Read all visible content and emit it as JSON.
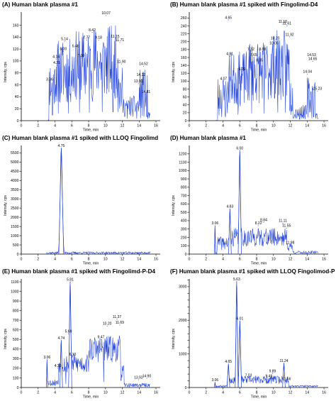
{
  "colors": {
    "trace": "#1f3fd6",
    "axis": "#000000",
    "text": "#000000"
  },
  "chart_data": [
    {
      "id": "A",
      "type": "line",
      "title": "(A) Human blank plasma #1",
      "xlabel": "Time, min",
      "ylabel": "Intensity, cps",
      "xlim": [
        0,
        16.5
      ],
      "ylim": [
        0,
        182
      ],
      "xticks": [
        0,
        2,
        4,
        6,
        8,
        10,
        12,
        14,
        16
      ],
      "yticks": [
        0,
        20,
        40,
        60,
        80,
        100,
        120,
        140,
        160
      ],
      "grid": false,
      "trace": {
        "x_start": 3.0,
        "x_end": 15.3,
        "step": 0.045,
        "seed": 11,
        "segments": [
          {
            "x": [
              3.0,
              3.3
            ],
            "base": 0,
            "amp": 2
          },
          {
            "x": [
              3.3,
              4.0
            ],
            "base": 62,
            "amp": 45
          },
          {
            "x": [
              4.0,
              6.2
            ],
            "base": 82,
            "amp": 55
          },
          {
            "x": [
              6.2,
              8.5
            ],
            "base": 92,
            "amp": 60
          },
          {
            "x": [
              8.5,
              11.6
            ],
            "base": 98,
            "amp": 62
          },
          {
            "x": [
              11.6,
              12.0
            ],
            "base": 50,
            "amp": 40
          },
          {
            "x": [
              12.0,
              14.0
            ],
            "base": 24,
            "amp": 18
          },
          {
            "x": [
              14.0,
              15.0
            ],
            "base": 44,
            "amp": 42
          },
          {
            "x": [
              15.0,
              15.3
            ],
            "base": 8,
            "amp": 6
          }
        ],
        "dropouts": [
          3.7,
          4.4,
          5.6,
          6.9,
          8.1,
          9.6,
          10.9,
          11.5,
          12.6,
          13.7,
          14.9
        ]
      },
      "peaks": [
        {
          "x": 3.36,
          "y": 65,
          "label": "3.36"
        },
        {
          "x": 4.21,
          "y": 93,
          "label": "4.21"
        },
        {
          "x": 4.14,
          "y": 103,
          "label": "4.14"
        },
        {
          "x": 5.0,
          "y": 116,
          "label": "5.00"
        },
        {
          "x": 5.14,
          "y": 133,
          "label": "5.14"
        },
        {
          "x": 7.1,
          "y": 105,
          "label": "7.10"
        },
        {
          "x": 6.46,
          "y": 121,
          "label": "6.46"
        },
        {
          "x": 7.77,
          "y": 135,
          "label": "7.77"
        },
        {
          "x": 9.18,
          "y": 135,
          "label": "9.18"
        },
        {
          "x": 8.42,
          "y": 148,
          "label": "8.42"
        },
        {
          "x": 10.07,
          "y": 176,
          "label": "10.07"
        },
        {
          "x": 11.15,
          "y": 137,
          "label": "11.15"
        },
        {
          "x": 11.71,
          "y": 131,
          "label": "11.71"
        },
        {
          "x": 11.9,
          "y": 95,
          "label": "11.90"
        },
        {
          "x": 14.52,
          "y": 91,
          "label": "14.52"
        },
        {
          "x": 14.22,
          "y": 73,
          "label": "14.22"
        },
        {
          "x": 13.91,
          "y": 62,
          "label": "13.91"
        },
        {
          "x": 14.81,
          "y": 44,
          "label": "14.81"
        }
      ]
    },
    {
      "id": "B",
      "type": "line",
      "title": "(B) Human blank plasma #1 spiked with Fingolimd-D4",
      "xlabel": "Time, min",
      "ylabel": "Intensity, cps",
      "xlim": [
        0,
        16.5
      ],
      "ylim": [
        0,
        275
      ],
      "xticks": [
        0,
        2,
        4,
        6,
        8,
        10,
        12,
        14,
        16
      ],
      "yticks": [
        0,
        20,
        40,
        60,
        80,
        100,
        120,
        140,
        160,
        180,
        200,
        220,
        240,
        260
      ],
      "grid": false,
      "trace": {
        "x_start": 3.0,
        "x_end": 15.3,
        "step": 0.045,
        "seed": 23,
        "segments": [
          {
            "x": [
              3.0,
              3.4
            ],
            "base": 0,
            "amp": 2
          },
          {
            "x": [
              3.4,
              4.6
            ],
            "base": 60,
            "amp": 55
          },
          {
            "x": [
              4.6,
              7.0
            ],
            "base": 105,
            "amp": 70
          },
          {
            "x": [
              7.0,
              9.5
            ],
            "base": 125,
            "amp": 80
          },
          {
            "x": [
              9.5,
              11.9
            ],
            "base": 140,
            "amp": 90
          },
          {
            "x": [
              11.9,
              12.3
            ],
            "base": 60,
            "amp": 50
          },
          {
            "x": [
              12.3,
              14.0
            ],
            "base": 22,
            "amp": 18
          },
          {
            "x": [
              14.0,
              15.0
            ],
            "base": 60,
            "amp": 55
          },
          {
            "x": [
              15.0,
              15.3
            ],
            "base": 12,
            "amp": 8
          }
        ],
        "dropouts": [
          4.3,
          5.8,
          7.4,
          8.9,
          10.5,
          11.4,
          13.1,
          14.8
        ]
      },
      "peaks": [
        {
          "x": 4.07,
          "y": 100,
          "label": "4.07"
        },
        {
          "x": 4.65,
          "y": 255,
          "label": "4.65"
        },
        {
          "x": 4.81,
          "y": 163,
          "label": "4.81"
        },
        {
          "x": 6.26,
          "y": 124,
          "label": "6.26"
        },
        {
          "x": 7.32,
          "y": 175,
          "label": "7.32"
        },
        {
          "x": 7.65,
          "y": 160,
          "label": "7.65"
        },
        {
          "x": 8.35,
          "y": 147,
          "label": "8.35"
        },
        {
          "x": 8.69,
          "y": 175,
          "label": "8.69"
        },
        {
          "x": 10.05,
          "y": 190,
          "label": "10.05"
        },
        {
          "x": 10.2,
          "y": 203,
          "label": "10.20"
        },
        {
          "x": 11.1,
          "y": 245,
          "label": "11.10"
        },
        {
          "x": 11.61,
          "y": 240,
          "label": "11.61"
        },
        {
          "x": 11.92,
          "y": 212,
          "label": "11.92"
        },
        {
          "x": 14.53,
          "y": 160,
          "label": "14.53"
        },
        {
          "x": 14.65,
          "y": 150,
          "label": "14.65"
        },
        {
          "x": 14.04,
          "y": 118,
          "label": "14.04"
        },
        {
          "x": 15.23,
          "y": 75,
          "label": "15.23"
        }
      ]
    },
    {
      "id": "C",
      "type": "line",
      "title": "(C) Human blank plasma #1 spiked with LLOQ Fingolimd",
      "xlabel": "Time, min",
      "ylabel": "Intensity, cps",
      "xlim": [
        0,
        16.5
      ],
      "ylim": [
        0,
        5900
      ],
      "xticks": [
        0,
        2,
        4,
        6,
        8,
        10,
        12,
        14,
        16
      ],
      "yticks": [
        0,
        500,
        1000,
        1500,
        2000,
        2500,
        3000,
        3500,
        4000,
        4500,
        5000,
        5500
      ],
      "grid": false,
      "trace": {
        "x_start": 3.0,
        "x_end": 15.3,
        "step": 0.045,
        "seed": 37,
        "segments": [
          {
            "x": [
              3.0,
              15.3
            ],
            "base": 70,
            "amp": 60
          }
        ],
        "dropouts": []
      },
      "peaks": [
        {
          "x": 4.75,
          "y": 5750,
          "label": "4.75",
          "width": 0.18,
          "shape": true
        }
      ]
    },
    {
      "id": "D",
      "type": "line",
      "title": "(D) Human blank plasma #1",
      "xlabel": "Time, min",
      "ylabel": "Intensity, cps",
      "xlim": [
        0,
        16.5
      ],
      "ylim": [
        0,
        1300
      ],
      "xticks": [
        0,
        2,
        4,
        6,
        8,
        10,
        12,
        14,
        16
      ],
      "yticks": [
        0,
        100,
        200,
        300,
        400,
        500,
        600,
        700,
        800,
        900,
        1000,
        1100,
        1200
      ],
      "grid": false,
      "trace": {
        "x_start": 3.0,
        "x_end": 15.3,
        "step": 0.045,
        "seed": 41,
        "segments": [
          {
            "x": [
              3.0,
              3.3
            ],
            "base": 10,
            "amp": 8
          },
          {
            "x": [
              3.3,
              5.0
            ],
            "base": 130,
            "amp": 80
          },
          {
            "x": [
              5.0,
              11.6
            ],
            "base": 200,
            "amp": 110
          },
          {
            "x": [
              11.6,
              12.3
            ],
            "base": 90,
            "amp": 60
          },
          {
            "x": [
              12.3,
              15.3
            ],
            "base": 20,
            "amp": 18
          }
        ],
        "dropouts": []
      },
      "peaks": [
        {
          "x": 3.06,
          "y": 340,
          "label": "3.06",
          "width": 0.05,
          "shape": true
        },
        {
          "x": 4.83,
          "y": 540,
          "label": "4.83",
          "width": 0.1,
          "shape": true
        },
        {
          "x": 6.0,
          "y": 1240,
          "label": "6.00",
          "width": 0.12,
          "shape": true
        },
        {
          "x": 8.22,
          "y": 340,
          "label": "8.22"
        },
        {
          "x": 8.84,
          "y": 380,
          "label": "8.84"
        },
        {
          "x": 11.11,
          "y": 370,
          "label": "11.11"
        },
        {
          "x": 11.55,
          "y": 310,
          "label": "11.55"
        },
        {
          "x": 11.98,
          "y": 110,
          "label": "11.98"
        }
      ]
    },
    {
      "id": "E",
      "type": "line",
      "title": "(E) Human blank plasma #1 spiked with Fingolimd-P-D4",
      "xlabel": "Time, min",
      "ylabel": "Intensity, cps",
      "xlim": [
        0,
        16.5
      ],
      "ylim": [
        0,
        1130
      ],
      "xticks": [
        0,
        2,
        4,
        6,
        8,
        10,
        12,
        14,
        16
      ],
      "yticks": [
        0,
        100,
        200,
        300,
        400,
        500,
        600,
        700,
        800,
        900,
        1000,
        1100
      ],
      "grid": false,
      "trace": {
        "x_start": 3.0,
        "x_end": 15.3,
        "step": 0.045,
        "seed": 53,
        "segments": [
          {
            "x": [
              3.0,
              4.4
            ],
            "base": 50,
            "amp": 35
          },
          {
            "x": [
              4.4,
              8.0
            ],
            "base": 250,
            "amp": 100
          },
          {
            "x": [
              8.0,
              11.8
            ],
            "base": 400,
            "amp": 140
          },
          {
            "x": [
              11.8,
              12.2
            ],
            "base": 150,
            "amp": 90
          },
          {
            "x": [
              12.2,
              15.3
            ],
            "base": 25,
            "amp": 20
          }
        ],
        "dropouts": [
          5.3,
          9.8
        ]
      },
      "peaks": [
        {
          "x": 3.06,
          "y": 290,
          "label": "3.06",
          "width": 0.05,
          "shape": true
        },
        {
          "x": 4.35,
          "y": 200,
          "label": "4.35"
        },
        {
          "x": 4.74,
          "y": 490,
          "label": "4.74",
          "width": 0.1,
          "shape": true
        },
        {
          "x": 5.6,
          "y": 560,
          "label": "5.60"
        },
        {
          "x": 5.81,
          "y": 1100,
          "label": "5.81",
          "width": 0.12,
          "shape": true
        },
        {
          "x": 6.1,
          "y": 320,
          "label": "6.10"
        },
        {
          "x": 9.47,
          "y": 500,
          "label": "9.47"
        },
        {
          "x": 10.2,
          "y": 640,
          "label": "10.20"
        },
        {
          "x": 11.37,
          "y": 710,
          "label": "11.37"
        },
        {
          "x": 11.69,
          "y": 650,
          "label": "11.69"
        },
        {
          "x": 13.92,
          "y": 80,
          "label": "13.92"
        },
        {
          "x": 14.9,
          "y": 95,
          "label": "14.90"
        }
      ]
    },
    {
      "id": "F",
      "type": "line",
      "title": "(F) Human blank plasma #1 spiked with LLOQ Fingolimod-P",
      "xlabel": "Time, min",
      "ylabel": "Intensity, cps",
      "xlim": [
        0,
        16.5
      ],
      "ylim": [
        0,
        3230
      ],
      "xticks": [
        0,
        2,
        4,
        6,
        8,
        10,
        12,
        14,
        16
      ],
      "yticks": [
        0,
        200,
        400,
        600,
        800,
        1000,
        1200,
        1400,
        1600,
        1800,
        2000,
        2200,
        2400,
        2600,
        2800,
        3000,
        3200
      ],
      "ytick_labels": [
        "0",
        "",
        "",
        "",
        "",
        "1000",
        "",
        "",
        "",
        "",
        "2000",
        "",
        "",
        "",
        "",
        "3000",
        ""
      ],
      "grid": false,
      "trace": {
        "x_start": 3.0,
        "x_end": 15.3,
        "step": 0.045,
        "seed": 67,
        "segments": [
          {
            "x": [
              3.0,
              4.5
            ],
            "base": 40,
            "amp": 30
          },
          {
            "x": [
              4.5,
              11.8
            ],
            "base": 230,
            "amp": 120
          },
          {
            "x": [
              11.8,
              15.3
            ],
            "base": 40,
            "amp": 30
          }
        ],
        "dropouts": []
      },
      "peaks": [
        {
          "x": 3.06,
          "y": 150,
          "label": "3.06",
          "width": 0.05,
          "shape": true
        },
        {
          "x": 4.65,
          "y": 700,
          "label": "4.65",
          "width": 0.1,
          "shape": true
        },
        {
          "x": 5.63,
          "y": 3150,
          "label": "5.63",
          "width": 0.11,
          "shape": true
        },
        {
          "x": 6.01,
          "y": 1980,
          "label": "6.01",
          "width": 0.12,
          "shape": true
        },
        {
          "x": 7.03,
          "y": 290,
          "label": "7.03"
        },
        {
          "x": 9.46,
          "y": 270,
          "label": "9.46"
        },
        {
          "x": 9.89,
          "y": 420,
          "label": "9.89"
        },
        {
          "x": 11.24,
          "y": 720,
          "label": "11.24",
          "width": 0.1,
          "shape": true
        },
        {
          "x": 11.56,
          "y": 180,
          "label": "11.56"
        }
      ]
    }
  ]
}
